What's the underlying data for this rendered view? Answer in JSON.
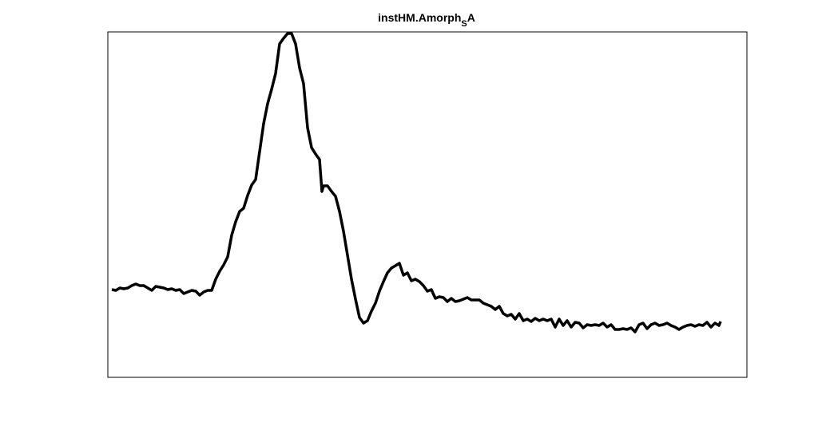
{
  "chart_data": {
    "type": "line",
    "title": {
      "main": "instHM.Amorph",
      "subscript": "S",
      "after": "A"
    },
    "color": "#000000",
    "xlim": [
      0,
      800
    ],
    "ylim": [
      0,
      433
    ],
    "xticks": [],
    "yticks": [],
    "x": [
      5,
      10,
      15,
      20,
      25,
      30,
      35,
      40,
      45,
      50,
      55,
      60,
      65,
      70,
      75,
      80,
      85,
      90,
      95,
      100,
      105,
      110,
      115,
      120,
      125,
      130,
      135,
      140,
      145,
      150,
      155,
      160,
      165,
      170,
      175,
      180,
      185,
      190,
      195,
      200,
      205,
      210,
      215,
      220,
      225,
      230,
      235,
      240,
      245,
      250,
      255,
      260,
      265,
      268,
      270,
      275,
      280,
      285,
      290,
      295,
      300,
      305,
      310,
      315,
      320,
      325,
      330,
      335,
      340,
      345,
      350,
      355,
      360,
      365,
      370,
      375,
      380,
      385,
      390,
      395,
      400,
      405,
      410,
      415,
      420,
      425,
      430,
      435,
      440,
      445,
      450,
      455,
      460,
      465,
      470,
      475,
      480,
      485,
      490,
      495,
      500,
      505,
      510,
      515,
      520,
      525,
      530,
      535,
      540,
      545,
      550,
      555,
      560,
      565,
      570,
      575,
      580,
      585,
      590,
      595,
      600,
      605,
      610,
      615,
      620,
      625,
      630,
      635,
      640,
      645,
      650,
      655,
      660,
      665,
      670,
      675,
      680,
      685,
      690,
      695,
      700,
      705,
      710,
      715,
      720,
      725,
      730,
      735,
      740,
      745,
      750,
      755,
      760,
      765,
      767
    ],
    "values": [
      110,
      109,
      112,
      111,
      112,
      115,
      117,
      115,
      115,
      112,
      109,
      114,
      113,
      112,
      110,
      111,
      109,
      110,
      105,
      107,
      109,
      108,
      103,
      107,
      109,
      109,
      123,
      133,
      141,
      151,
      178,
      195,
      208,
      212,
      228,
      241,
      248,
      283,
      318,
      343,
      361,
      381,
      418,
      425,
      431,
      431,
      418,
      388,
      368,
      313,
      288,
      280,
      273,
      233,
      240,
      240,
      233,
      227,
      208,
      183,
      153,
      123,
      98,
      75,
      68,
      71,
      83,
      93,
      108,
      120,
      131,
      137,
      140,
      143,
      128,
      131,
      121,
      123,
      120,
      115,
      108,
      110,
      99,
      101,
      100,
      95,
      99,
      95,
      96,
      98,
      100,
      97,
      97,
      97,
      93,
      91,
      89,
      85,
      89,
      80,
      77,
      79,
      73,
      80,
      71,
      73,
      70,
      74,
      71,
      73,
      71,
      73,
      63,
      73,
      65,
      71,
      63,
      69,
      68,
      62,
      66,
      65,
      66,
      65,
      68,
      63,
      66,
      60,
      60,
      61,
      60,
      62,
      57,
      66,
      68,
      61,
      66,
      68,
      65,
      66,
      68,
      65,
      63,
      60,
      63,
      65,
      66,
      64,
      66,
      65,
      69,
      63,
      68,
      65,
      70
    ]
  }
}
